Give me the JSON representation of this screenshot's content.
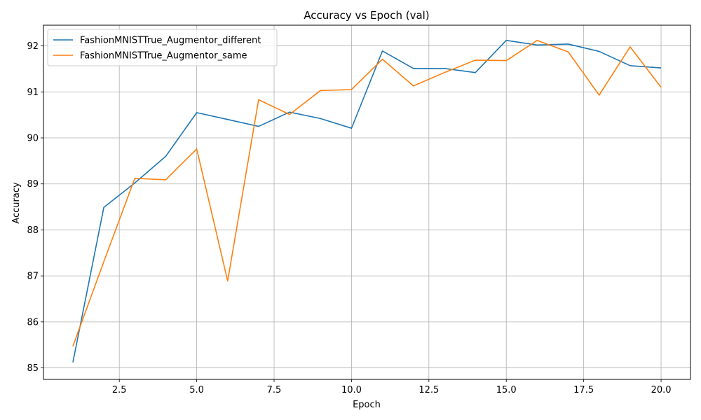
{
  "chart_data": {
    "type": "line",
    "title": "Accuracy vs Epoch (val)",
    "xlabel": "Epoch",
    "ylabel": "Accuracy",
    "xlim": [
      0.05,
      20.95
    ],
    "ylim": [
      84.75,
      92.45
    ],
    "xticks": [
      2.5,
      5.0,
      7.5,
      10.0,
      12.5,
      15.0,
      17.5,
      20.0
    ],
    "xtick_labels": [
      "2.5",
      "5.0",
      "7.5",
      "10.0",
      "12.5",
      "15.0",
      "17.5",
      "20.0"
    ],
    "yticks": [
      85,
      86,
      87,
      88,
      89,
      90,
      91,
      92
    ],
    "ytick_labels": [
      "85",
      "86",
      "87",
      "88",
      "89",
      "90",
      "91",
      "92"
    ],
    "grid": true,
    "legend_position": "top-left",
    "x": [
      1,
      2,
      3,
      4,
      5,
      6,
      7,
      8,
      9,
      10,
      11,
      12,
      13,
      14,
      15,
      16,
      17,
      18,
      19,
      20
    ],
    "series": [
      {
        "name": "FashionMNISTTrue_Augmentor_different",
        "color": "#1f77b4",
        "values": [
          85.12,
          88.49,
          89.02,
          89.6,
          90.55,
          90.4,
          90.25,
          90.56,
          90.42,
          90.21,
          91.89,
          91.51,
          91.51,
          91.42,
          92.12,
          92.02,
          92.04,
          91.88,
          91.57,
          91.52
        ]
      },
      {
        "name": "FashionMNISTTrue_Augmentor_same",
        "color": "#ff7f0e",
        "values": [
          85.47,
          87.31,
          89.12,
          89.09,
          89.76,
          86.89,
          90.83,
          90.51,
          91.03,
          91.05,
          91.71,
          91.13,
          91.42,
          91.69,
          91.68,
          92.12,
          91.87,
          90.93,
          91.98,
          91.1
        ]
      }
    ]
  }
}
